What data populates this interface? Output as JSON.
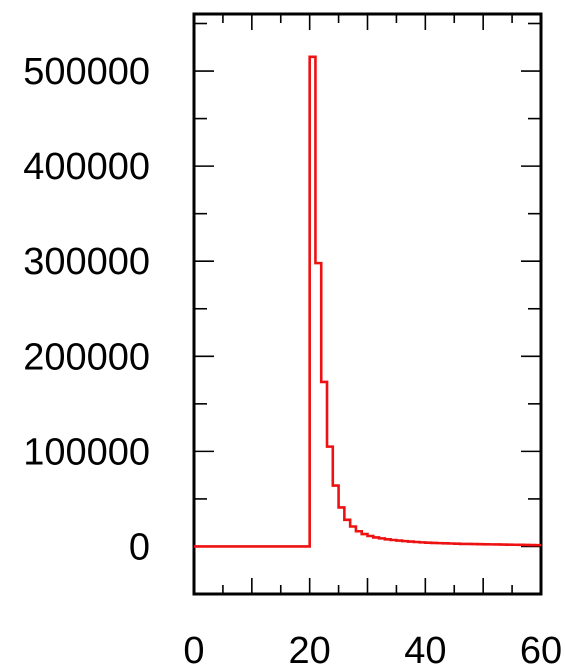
{
  "chart_data": {
    "type": "line",
    "style": "step-histogram",
    "title": "",
    "xlabel": "",
    "ylabel": "",
    "xlim": [
      0,
      60
    ],
    "ylim": [
      -50000,
      560000
    ],
    "grid": false,
    "x_ticks": [
      0,
      20,
      40,
      60
    ],
    "x_tick_labels": [
      "0",
      "20",
      "40",
      "60"
    ],
    "y_ticks": [
      0,
      100000,
      200000,
      300000,
      400000,
      500000
    ],
    "y_tick_labels": [
      "0",
      "100000",
      "200000",
      "300000",
      "400000",
      "500000"
    ],
    "series": [
      {
        "color": "#ee1111",
        "x": [
          0,
          1,
          2,
          3,
          4,
          5,
          6,
          7,
          8,
          9,
          10,
          11,
          12,
          13,
          14,
          15,
          16,
          17,
          18,
          19,
          20,
          21,
          22,
          23,
          24,
          25,
          26,
          27,
          28,
          29,
          30,
          31,
          32,
          33,
          34,
          35,
          36,
          37,
          38,
          39,
          40,
          41,
          42,
          43,
          44,
          45,
          46,
          47,
          48,
          49,
          50,
          51,
          52,
          53,
          54,
          55,
          56,
          57,
          58,
          59
        ],
        "values": [
          0,
          0,
          0,
          0,
          0,
          0,
          0,
          0,
          0,
          0,
          0,
          0,
          0,
          0,
          0,
          0,
          0,
          0,
          0,
          0,
          515000,
          298000,
          173000,
          105000,
          64000,
          41000,
          28000,
          21000,
          16000,
          13000,
          11000,
          9500,
          8500,
          7500,
          6800,
          6200,
          5600,
          5100,
          4700,
          4300,
          4000,
          3700,
          3500,
          3300,
          3100,
          2900,
          2700,
          2600,
          2500,
          2400,
          2300,
          2200,
          2100,
          2000,
          1900,
          1800,
          1700,
          1600,
          1500,
          1400
        ]
      }
    ]
  }
}
